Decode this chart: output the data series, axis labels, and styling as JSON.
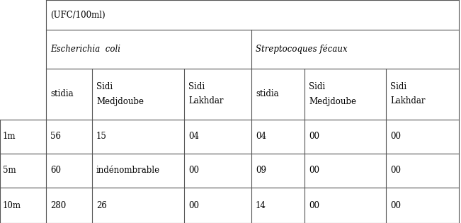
{
  "title_row": "(UFC/100ml)",
  "header1": "Escherichia  coli",
  "header2": "Streptocoques fécaux",
  "col_headers": [
    "stidia",
    "Sidi\nMedjdoube",
    "Sidi\nLakhdar",
    "stidia",
    "Sidi\nMedjdoube",
    "Sidi\nLakhdar"
  ],
  "row_labels": [
    "1m",
    "5m",
    "10m"
  ],
  "data": [
    [
      "56",
      "15",
      "04",
      "04",
      "00",
      "00"
    ],
    [
      "60",
      "indénombrable",
      "00",
      "09",
      "00",
      "00"
    ],
    [
      "280",
      "26",
      "00",
      "14",
      "00",
      "00"
    ]
  ],
  "bg_color": "#ffffff",
  "text_color": "#000000",
  "line_color": "#555555",
  "font_size": 8.5,
  "font_family": "DejaVu Serif"
}
